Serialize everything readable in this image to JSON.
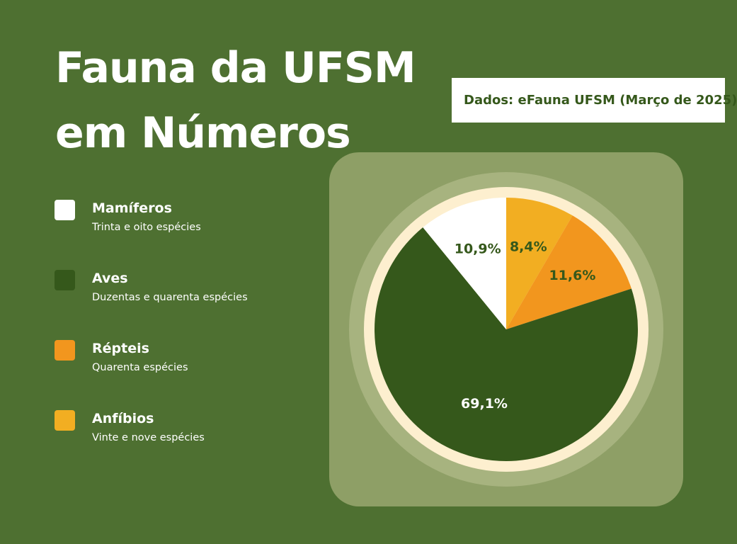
{
  "title_lines": [
    "Fauna da UFSM",
    "em Números"
  ],
  "source": "Dados: eFauna UFSM (Março de 2025)",
  "legend": [
    {
      "name": "Mamíferos",
      "desc": "Trinta e oito espécies",
      "color": "#ffffff"
    },
    {
      "name": "Aves",
      "desc": "Duzentas e quarenta espécies",
      "color": "#35581b"
    },
    {
      "name": "Répteis",
      "desc": "Quarenta espécies",
      "color": "#f2961e"
    },
    {
      "name": "Anfíbios",
      "desc": "Vinte e nove espécies",
      "color": "#f2ae22"
    }
  ],
  "chart_data": {
    "type": "pie",
    "slices": [
      {
        "name": "Anfíbios",
        "value": 8.4,
        "label": "8,4%",
        "color": "#f2ae22",
        "label_color": "#35581b"
      },
      {
        "name": "Répteis",
        "value": 11.6,
        "label": "11,6%",
        "color": "#f2961e",
        "label_color": "#35581b"
      },
      {
        "name": "Aves",
        "value": 69.1,
        "label": "69,1%",
        "color": "#35581b",
        "label_color": "#ffffff"
      },
      {
        "name": "Mamíferos",
        "value": 10.9,
        "label": "10,9%",
        "color": "#ffffff",
        "label_color": "#35581b"
      }
    ],
    "start": "top",
    "direction": "clockwise",
    "ring_outer_color": "#a7b37f",
    "ring_inner_color": "#fdefcf"
  }
}
